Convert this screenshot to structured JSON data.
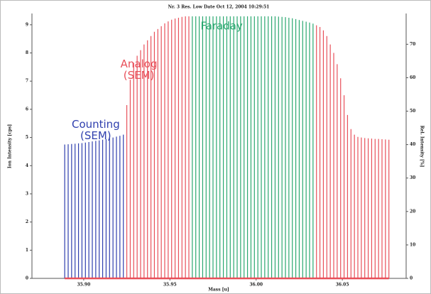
{
  "chart_data": {
    "type": "stem",
    "title": "Nr. 3  Res. Low  Date Oct 12, 2004 10:29:51",
    "x_label": "Mass [u]",
    "y_label": "Ion Intensity [cps]",
    "y2_label": "Rel. Intensity [%]",
    "xlim": [
      35.87,
      36.087
    ],
    "xticks": [
      {
        "value": 35.9,
        "label": "35.90"
      },
      {
        "value": 35.95,
        "label": "35.95"
      },
      {
        "value": 36,
        "label": "36.00"
      },
      {
        "value": 36.05,
        "label": "36.05"
      }
    ],
    "ylim": [
      0,
      9.4
    ],
    "yticks": [
      0,
      1,
      2,
      3,
      4,
      5,
      6,
      7,
      8,
      9
    ],
    "y2lim": [
      0,
      79.2
    ],
    "y2ticks": [
      0,
      10,
      20,
      30,
      40,
      50,
      60,
      70
    ],
    "series": [
      {
        "color": "#2f3fae",
        "x": [
          35.889,
          35.891,
          35.893,
          35.895,
          35.897,
          35.899,
          35.901,
          35.903,
          35.905,
          35.907,
          35.909,
          35.911,
          35.913,
          35.915,
          35.917,
          35.919,
          35.921,
          35.923
        ],
        "values": [
          4.75,
          4.76,
          4.77,
          4.78,
          4.79,
          4.8,
          4.82,
          4.84,
          4.86,
          4.88,
          4.9,
          4.92,
          4.94,
          4.97,
          5.0,
          5.03,
          5.06,
          5.1
        ]
      },
      {
        "color": "#e8505a",
        "x": [
          35.925,
          35.927,
          35.929,
          35.931,
          35.933,
          35.935,
          35.937,
          35.939,
          35.941,
          35.943,
          35.945,
          35.947,
          35.949,
          35.951,
          35.953,
          35.955,
          35.957,
          35.959,
          35.961,
          36.035,
          36.037,
          36.039,
          36.041,
          36.043,
          36.045,
          36.047,
          36.049,
          36.051,
          36.053,
          36.055,
          36.057,
          36.059,
          36.061,
          36.063,
          36.065,
          36.067,
          36.069,
          36.071,
          36.073,
          36.075,
          36.077
        ],
        "values": [
          6.15,
          7.05,
          7.65,
          7.9,
          8.1,
          8.3,
          8.45,
          8.6,
          8.75,
          8.85,
          8.95,
          9.05,
          9.12,
          9.18,
          9.22,
          9.25,
          9.28,
          9.3,
          9.3,
          8.98,
          8.92,
          8.8,
          8.6,
          8.3,
          8.0,
          7.6,
          7.1,
          6.5,
          5.8,
          5.3,
          5.1,
          5.02,
          5.0,
          4.98,
          4.97,
          4.96,
          4.95,
          4.95,
          4.94,
          4.93,
          4.92
        ]
      },
      {
        "color": "#2aa870",
        "x": [
          35.963,
          35.965,
          35.967,
          35.969,
          35.971,
          35.973,
          35.975,
          35.977,
          35.979,
          35.981,
          35.983,
          35.985,
          35.987,
          35.989,
          35.991,
          35.993,
          35.995,
          35.997,
          35.999,
          36.001,
          36.003,
          36.005,
          36.007,
          36.009,
          36.011,
          36.013,
          36.015,
          36.017,
          36.019,
          36.021,
          36.023,
          36.025,
          36.027,
          36.029,
          36.031,
          36.033
        ],
        "values": [
          9.3,
          9.3,
          9.3,
          9.3,
          9.3,
          9.3,
          9.3,
          9.3,
          9.3,
          9.3,
          9.3,
          9.3,
          9.3,
          9.3,
          9.3,
          9.3,
          9.3,
          9.3,
          9.3,
          9.3,
          9.3,
          9.3,
          9.3,
          9.3,
          9.3,
          9.29,
          9.28,
          9.27,
          9.25,
          9.23,
          9.2,
          9.17,
          9.14,
          9.11,
          9.08,
          9.04
        ]
      }
    ],
    "annotations": [
      {
        "lines": [
          "Counting",
          "(SEM)"
        ],
        "color": "#2f3fae",
        "x": 35.907,
        "y": 5.45
      },
      {
        "lines": [
          "Analog",
          "(SEM)"
        ],
        "color": "#e8505a",
        "x": 35.932,
        "y": 7.6
      },
      {
        "lines": [
          "Faraday"
        ],
        "color": "#2aa870",
        "x": 35.98,
        "y": 8.95
      }
    ]
  }
}
